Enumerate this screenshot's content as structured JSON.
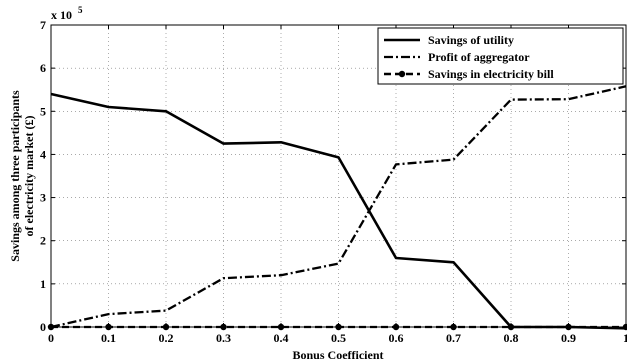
{
  "chart_data": {
    "type": "line",
    "xlabel": "Bonus Coefficient",
    "ylabel_lines": [
      "Savings among three participants",
      "of electricity market (£)"
    ],
    "y_multiplier": {
      "base": "x 10",
      "exponent": "5"
    },
    "xlim": [
      0,
      1
    ],
    "ylim": [
      0,
      7
    ],
    "grid": true,
    "legend_position": "top-right",
    "x_ticks": [
      "0",
      "0.1",
      "0.2",
      "0.3",
      "0.4",
      "0.5",
      "0.6",
      "0.7",
      "0.8",
      "0.9",
      "1"
    ],
    "y_ticks": [
      "0",
      "1",
      "2",
      "3",
      "4",
      "5",
      "6",
      "7"
    ],
    "x": [
      0,
      0.1,
      0.2,
      0.3,
      0.4,
      0.5,
      0.6,
      0.7,
      0.8,
      0.9,
      1.0
    ],
    "series": [
      {
        "name": "Savings of utility",
        "style": "solid",
        "color": "#000000",
        "marker": "none",
        "values": [
          5.4,
          5.1,
          5.0,
          4.25,
          4.28,
          3.93,
          1.6,
          1.5,
          0.0,
          0.0,
          -0.03
        ]
      },
      {
        "name": "Profit of aggregator",
        "style": "dashdot",
        "color": "#000000",
        "marker": "none",
        "values": [
          0.0,
          0.3,
          0.38,
          1.13,
          1.2,
          1.47,
          3.77,
          3.88,
          5.27,
          5.28,
          5.58
        ]
      },
      {
        "name": "Savings in electricity bill",
        "style": "dashed",
        "color": "#000000",
        "marker": "circle",
        "values": [
          0.0,
          0.0,
          0.0,
          0.0,
          0.0,
          0.0,
          0.0,
          0.0,
          0.0,
          0.0,
          0.0
        ]
      }
    ]
  }
}
